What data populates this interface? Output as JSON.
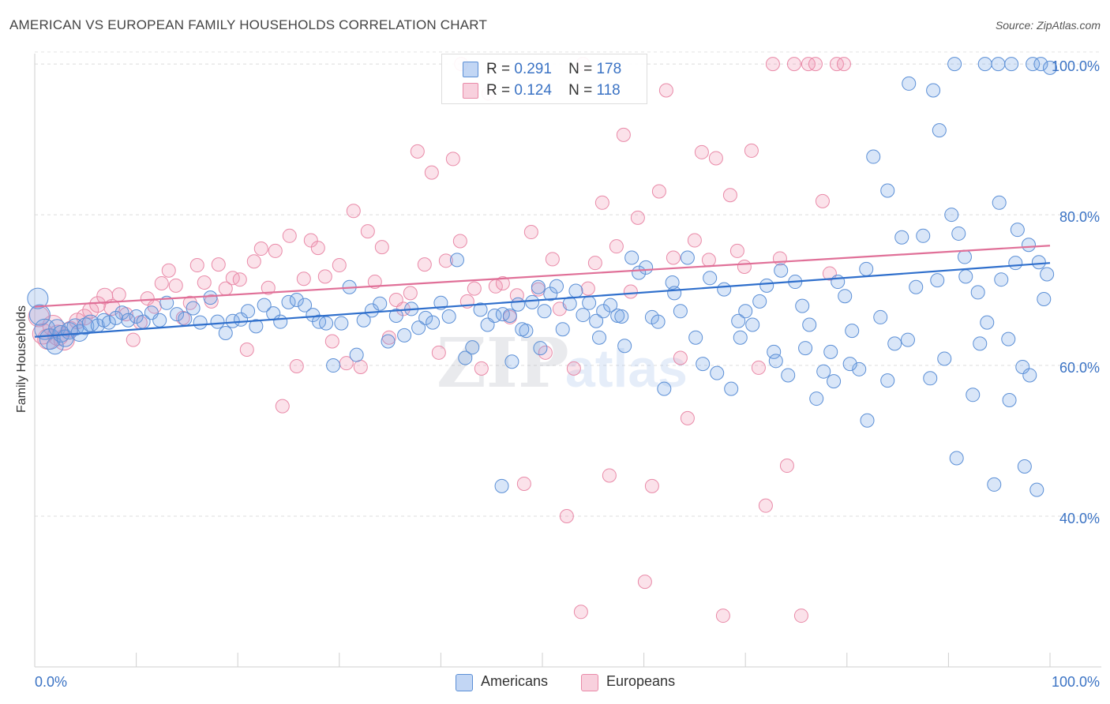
{
  "header": {
    "title": "AMERICAN VS EUROPEAN FAMILY HOUSEHOLDS CORRELATION CHART",
    "source": "Source: ZipAtlas.com"
  },
  "legend": {
    "r_label": "R =",
    "n_label": "N =",
    "americans": {
      "r": "0.291",
      "n": "178"
    },
    "europeans": {
      "r": "0.124",
      "n": "118"
    }
  },
  "bottom_legend": {
    "americans": "Americans",
    "europeans": "Europeans"
  },
  "colors": {
    "americans_fill": "rgba(120,165,230,0.28)",
    "americans_stroke": "#5b8fd6",
    "americans_line": "#2f6fcc",
    "europeans_fill": "rgba(240,150,180,0.28)",
    "europeans_stroke": "#e98aa8",
    "europeans_line": "#e07098",
    "tick_label": "#3b73c4",
    "watermark": "rgba(190,200,215,0.35)"
  },
  "chart_data": {
    "type": "scatter",
    "title": "AMERICAN VS EUROPEAN FAMILY HOUSEHOLDS CORRELATION CHART",
    "xlabel": "",
    "ylabel": "Family Households",
    "xlim": [
      0,
      100
    ],
    "ylim": [
      20,
      102
    ],
    "x_tick_labels": [
      "0.0%",
      "100.0%"
    ],
    "y_ticks": [
      40,
      60,
      80,
      100
    ],
    "y_tick_labels": [
      "40.0%",
      "60.0%",
      "80.0%",
      "100.0%"
    ],
    "grid": true,
    "legend_position": "top-center",
    "watermark": "ZIPatlas",
    "series": [
      {
        "name": "Americans",
        "r": 0.291,
        "n": 178,
        "trend": {
          "x": [
            0,
            100
          ],
          "y": [
            63.8,
            73.6
          ]
        },
        "points": [
          [
            0.3,
            68.9
          ],
          [
            0.5,
            66.7
          ],
          [
            1.0,
            64.8
          ],
          [
            1.5,
            63.5
          ],
          [
            2.0,
            62.6
          ],
          [
            2.2,
            65.0
          ],
          [
            2.6,
            64.2
          ],
          [
            3.0,
            63.6
          ],
          [
            3.4,
            64.6
          ],
          [
            4.0,
            65.1
          ],
          [
            4.4,
            64.3
          ],
          [
            5.0,
            65.2
          ],
          [
            5.5,
            65.6
          ],
          [
            6.2,
            65.3
          ],
          [
            6.8,
            66.0
          ],
          [
            7.3,
            65.7
          ],
          [
            8.0,
            66.3
          ],
          [
            8.6,
            67.0
          ],
          [
            9.2,
            66.0
          ],
          [
            10.0,
            66.5
          ],
          [
            10.7,
            65.8
          ],
          [
            11.5,
            67.0
          ],
          [
            12.3,
            66.0
          ],
          [
            13.0,
            68.3
          ],
          [
            14.0,
            66.8
          ],
          [
            14.8,
            66.2
          ],
          [
            15.6,
            67.6
          ],
          [
            16.3,
            65.7
          ],
          [
            17.3,
            69.0
          ],
          [
            18.0,
            65.8
          ],
          [
            18.8,
            64.3
          ],
          [
            19.5,
            65.9
          ],
          [
            20.3,
            66.1
          ],
          [
            21.0,
            67.2
          ],
          [
            21.8,
            65.2
          ],
          [
            22.6,
            68.0
          ],
          [
            23.5,
            66.9
          ],
          [
            24.2,
            65.8
          ],
          [
            25.0,
            68.4
          ],
          [
            25.8,
            68.7
          ],
          [
            26.6,
            68.0
          ],
          [
            27.4,
            66.7
          ],
          [
            28.0,
            65.8
          ],
          [
            28.7,
            65.6
          ],
          [
            29.4,
            60.0
          ],
          [
            30.2,
            65.6
          ],
          [
            31.0,
            70.4
          ],
          [
            31.7,
            61.4
          ],
          [
            32.4,
            66.0
          ],
          [
            33.2,
            67.3
          ],
          [
            34.0,
            68.2
          ],
          [
            34.8,
            63.2
          ],
          [
            35.6,
            66.6
          ],
          [
            36.4,
            64.0
          ],
          [
            37.1,
            67.5
          ],
          [
            37.8,
            65.0
          ],
          [
            38.5,
            66.3
          ],
          [
            39.2,
            65.7
          ],
          [
            40.0,
            68.3
          ],
          [
            40.8,
            66.5
          ],
          [
            41.6,
            74.0
          ],
          [
            42.4,
            61.0
          ],
          [
            43.1,
            62.4
          ],
          [
            43.9,
            67.4
          ],
          [
            44.6,
            65.4
          ],
          [
            45.3,
            66.6
          ],
          [
            46.1,
            66.8
          ],
          [
            46.8,
            66.6
          ],
          [
            47.6,
            68.1
          ],
          [
            48.4,
            64.6
          ],
          [
            49.0,
            68.4
          ],
          [
            49.6,
            70.4
          ],
          [
            50.2,
            67.2
          ],
          [
            50.8,
            69.5
          ],
          [
            51.4,
            70.5
          ],
          [
            52.0,
            64.8
          ],
          [
            52.7,
            68.2
          ],
          [
            53.3,
            69.9
          ],
          [
            54.0,
            66.7
          ],
          [
            54.6,
            68.3
          ],
          [
            55.3,
            65.9
          ],
          [
            56.0,
            67.2
          ],
          [
            56.7,
            68.0
          ],
          [
            57.4,
            66.6
          ],
          [
            58.1,
            62.6
          ],
          [
            58.8,
            74.3
          ],
          [
            59.5,
            72.3
          ],
          [
            60.2,
            73.0
          ],
          [
            60.8,
            66.4
          ],
          [
            61.4,
            65.8
          ],
          [
            62.0,
            56.9
          ],
          [
            62.8,
            71.0
          ],
          [
            63.6,
            67.2
          ],
          [
            64.3,
            74.3
          ],
          [
            65.1,
            63.7
          ],
          [
            65.8,
            60.2
          ],
          [
            66.5,
            71.6
          ],
          [
            67.2,
            59.0
          ],
          [
            67.9,
            70.1
          ],
          [
            68.6,
            56.9
          ],
          [
            69.3,
            65.9
          ],
          [
            70.0,
            67.2
          ],
          [
            70.7,
            65.4
          ],
          [
            71.4,
            68.5
          ],
          [
            72.1,
            70.6
          ],
          [
            72.8,
            61.8
          ],
          [
            73.5,
            72.6
          ],
          [
            74.2,
            58.7
          ],
          [
            74.9,
            71.1
          ],
          [
            75.6,
            67.9
          ],
          [
            76.3,
            65.4
          ],
          [
            77.0,
            55.6
          ],
          [
            77.7,
            59.2
          ],
          [
            78.4,
            61.8
          ],
          [
            79.1,
            71.1
          ],
          [
            79.8,
            69.2
          ],
          [
            80.5,
            64.6
          ],
          [
            81.2,
            59.5
          ],
          [
            81.9,
            72.8
          ],
          [
            82.6,
            87.7
          ],
          [
            83.3,
            66.4
          ],
          [
            84.0,
            83.2
          ],
          [
            84.7,
            62.9
          ],
          [
            85.4,
            77.0
          ],
          [
            86.1,
            97.4
          ],
          [
            86.8,
            70.4
          ],
          [
            87.5,
            77.2
          ],
          [
            88.2,
            58.3
          ],
          [
            88.9,
            71.3
          ],
          [
            89.6,
            60.9
          ],
          [
            90.3,
            80.0
          ],
          [
            91.0,
            77.5
          ],
          [
            91.7,
            71.8
          ],
          [
            92.4,
            56.1
          ],
          [
            93.1,
            62.9
          ],
          [
            93.8,
            65.7
          ],
          [
            94.5,
            44.2
          ],
          [
            95.2,
            71.4
          ],
          [
            95.9,
            63.5
          ],
          [
            96.6,
            73.6
          ],
          [
            97.3,
            59.8
          ],
          [
            98.0,
            58.7
          ],
          [
            98.7,
            43.5
          ],
          [
            99.4,
            68.8
          ],
          [
            46.0,
            44.0
          ],
          [
            47.0,
            60.5
          ],
          [
            48.0,
            64.8
          ],
          [
            49.8,
            62.3
          ],
          [
            82.0,
            52.7
          ],
          [
            84.0,
            58.0
          ],
          [
            96.0,
            55.4
          ],
          [
            97.5,
            46.6
          ],
          [
            90.8,
            47.7
          ],
          [
            86.0,
            63.4
          ],
          [
            88.5,
            96.5
          ],
          [
            90.6,
            100
          ],
          [
            93.6,
            100
          ],
          [
            94.9,
            100
          ],
          [
            96.2,
            100
          ],
          [
            98.3,
            100
          ],
          [
            99.1,
            100
          ],
          [
            100.0,
            99.5
          ],
          [
            89.1,
            91.2
          ],
          [
            95.0,
            81.6
          ],
          [
            96.8,
            78.0
          ],
          [
            97.9,
            76.0
          ],
          [
            98.9,
            73.7
          ],
          [
            99.7,
            72.1
          ],
          [
            91.6,
            74.4
          ],
          [
            92.9,
            69.7
          ],
          [
            69.5,
            63.7
          ],
          [
            73.0,
            60.6
          ],
          [
            75.9,
            62.3
          ],
          [
            78.7,
            57.9
          ],
          [
            80.3,
            60.2
          ],
          [
            55.6,
            63.7
          ],
          [
            57.8,
            66.5
          ],
          [
            63.0,
            69.6
          ]
        ]
      },
      {
        "name": "Europeans",
        "r": 0.124,
        "n": 118,
        "trend": {
          "x": [
            0,
            100
          ],
          "y": [
            67.8,
            75.9
          ]
        },
        "points": [
          [
            0.4,
            66.5
          ],
          [
            0.8,
            64.2
          ],
          [
            1.3,
            63.5
          ],
          [
            1.8,
            65.3
          ],
          [
            2.3,
            64.0
          ],
          [
            2.9,
            63.4
          ],
          [
            3.5,
            64.8
          ],
          [
            4.2,
            65.9
          ],
          [
            4.9,
            66.4
          ],
          [
            5.5,
            67.3
          ],
          [
            6.2,
            68.1
          ],
          [
            6.9,
            69.2
          ],
          [
            7.6,
            67.7
          ],
          [
            8.3,
            69.4
          ],
          [
            9.0,
            66.8
          ],
          [
            9.7,
            63.4
          ],
          [
            10.4,
            65.7
          ],
          [
            11.1,
            68.9
          ],
          [
            11.8,
            67.8
          ],
          [
            12.5,
            70.9
          ],
          [
            13.2,
            72.6
          ],
          [
            13.9,
            70.6
          ],
          [
            14.6,
            66.3
          ],
          [
            15.3,
            68.3
          ],
          [
            16.0,
            73.3
          ],
          [
            16.7,
            71.0
          ],
          [
            17.4,
            68.5
          ],
          [
            18.1,
            73.4
          ],
          [
            18.8,
            70.2
          ],
          [
            19.5,
            71.6
          ],
          [
            20.2,
            71.4
          ],
          [
            20.9,
            62.1
          ],
          [
            21.6,
            73.8
          ],
          [
            22.3,
            75.5
          ],
          [
            23.0,
            70.3
          ],
          [
            23.7,
            75.2
          ],
          [
            24.4,
            54.6
          ],
          [
            25.1,
            77.2
          ],
          [
            25.8,
            59.9
          ],
          [
            26.5,
            71.5
          ],
          [
            27.2,
            76.6
          ],
          [
            27.9,
            75.6
          ],
          [
            28.6,
            71.8
          ],
          [
            29.3,
            63.2
          ],
          [
            30.0,
            73.3
          ],
          [
            30.7,
            60.3
          ],
          [
            31.4,
            80.5
          ],
          [
            32.1,
            59.8
          ],
          [
            32.8,
            77.8
          ],
          [
            33.5,
            71.1
          ],
          [
            34.2,
            75.7
          ],
          [
            34.9,
            63.7
          ],
          [
            35.6,
            68.7
          ],
          [
            36.3,
            67.5
          ],
          [
            37.0,
            69.6
          ],
          [
            37.7,
            88.4
          ],
          [
            38.4,
            73.4
          ],
          [
            39.1,
            85.6
          ],
          [
            39.8,
            61.7
          ],
          [
            40.5,
            73.9
          ],
          [
            41.2,
            87.4
          ],
          [
            41.9,
            76.5
          ],
          [
            42.6,
            68.5
          ],
          [
            43.3,
            70.2
          ],
          [
            44.0,
            59.6
          ],
          [
            44.7,
            96.1
          ],
          [
            45.4,
            70.5
          ],
          [
            46.1,
            70.9
          ],
          [
            46.8,
            66.4
          ],
          [
            47.5,
            69.3
          ],
          [
            48.2,
            44.3
          ],
          [
            48.9,
            77.7
          ],
          [
            49.6,
            70.1
          ],
          [
            50.3,
            61.7
          ],
          [
            51.0,
            74.1
          ],
          [
            51.7,
            67.5
          ],
          [
            52.4,
            40.0
          ],
          [
            53.1,
            59.6
          ],
          [
            53.8,
            27.3
          ],
          [
            54.5,
            70.2
          ],
          [
            55.2,
            73.6
          ],
          [
            55.9,
            81.6
          ],
          [
            56.6,
            45.4
          ],
          [
            57.3,
            75.8
          ],
          [
            58.0,
            90.6
          ],
          [
            58.7,
            69.8
          ],
          [
            59.4,
            79.6
          ],
          [
            60.1,
            31.3
          ],
          [
            60.8,
            44.0
          ],
          [
            61.5,
            83.1
          ],
          [
            62.2,
            96.5
          ],
          [
            62.9,
            74.3
          ],
          [
            63.6,
            61.0
          ],
          [
            64.3,
            53.0
          ],
          [
            65.0,
            76.6
          ],
          [
            65.7,
            88.3
          ],
          [
            66.4,
            74.0
          ],
          [
            67.1,
            87.5
          ],
          [
            67.8,
            26.8
          ],
          [
            68.5,
            82.6
          ],
          [
            69.2,
            75.2
          ],
          [
            69.9,
            73.1
          ],
          [
            70.6,
            88.5
          ],
          [
            71.3,
            59.7
          ],
          [
            72.0,
            41.4
          ],
          [
            72.7,
            100
          ],
          [
            73.4,
            74.2
          ],
          [
            74.1,
            46.7
          ],
          [
            74.8,
            100
          ],
          [
            75.5,
            26.8
          ],
          [
            76.2,
            100
          ],
          [
            76.9,
            100
          ],
          [
            77.6,
            81.8
          ],
          [
            78.3,
            72.2
          ],
          [
            79.0,
            100
          ],
          [
            79.7,
            100
          ],
          [
            42.0,
            100
          ],
          [
            54.0,
            100
          ]
        ]
      }
    ]
  }
}
